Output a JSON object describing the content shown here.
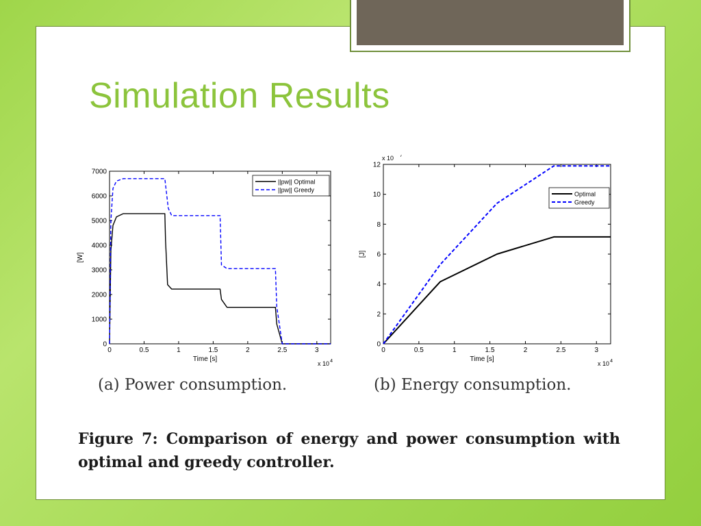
{
  "slide": {
    "title": "Simulation Results",
    "figure_caption": "Figure 7: Comparison of energy and power consumption with optimal and greedy controller.",
    "subcaption_a": "(a) Power consumption.",
    "subcaption_b": "(b) Energy consumption."
  },
  "chart_data": [
    {
      "type": "line",
      "title": "",
      "xlabel": "Time [s]",
      "ylabel": "[W]",
      "x_multiplier": "x 10",
      "x_multiplier_exp": "4",
      "xlim": [
        0,
        3.2
      ],
      "ylim": [
        0,
        7000
      ],
      "xticks": [
        "0",
        "0.5",
        "1",
        "1.5",
        "2",
        "2.5",
        "3"
      ],
      "yticks": [
        "0",
        "1000",
        "2000",
        "3000",
        "4000",
        "5000",
        "6000",
        "7000"
      ],
      "legend_position": "top-right",
      "series": [
        {
          "name": "||pw|| Optimal",
          "color": "#000000",
          "style": "solid",
          "x": [
            0,
            0.02,
            0.05,
            0.1,
            0.2,
            0.8,
            0.81,
            0.84,
            0.9,
            1.6,
            1.62,
            1.7,
            2.4,
            2.42,
            2.5,
            3.2
          ],
          "y": [
            0,
            3800,
            4800,
            5150,
            5280,
            5280,
            4200,
            2400,
            2220,
            2220,
            1800,
            1480,
            1480,
            800,
            0,
            0
          ]
        },
        {
          "name": "||pw|| Greedy",
          "color": "#0000ff",
          "style": "dashed",
          "x": [
            0,
            0.02,
            0.05,
            0.1,
            0.2,
            0.8,
            0.85,
            0.9,
            1.6,
            1.62,
            1.7,
            2.4,
            2.42,
            2.5,
            3.2
          ],
          "y": [
            0,
            5000,
            6300,
            6600,
            6700,
            6700,
            5500,
            5200,
            5200,
            3200,
            3050,
            3050,
            1500,
            0,
            0
          ]
        }
      ]
    },
    {
      "type": "line",
      "title": "",
      "xlabel": "Time [s]",
      "ylabel": "[J]",
      "x_multiplier": "x 10",
      "x_multiplier_exp": "4",
      "y_multiplier": "x 10",
      "y_multiplier_exp": "7",
      "xlim": [
        0,
        3.2
      ],
      "ylim": [
        0,
        12
      ],
      "xticks": [
        "0",
        "0.5",
        "1",
        "1.5",
        "2",
        "2.5",
        "3"
      ],
      "yticks": [
        "0",
        "2",
        "4",
        "6",
        "8",
        "10",
        "12"
      ],
      "legend_position": "top-right",
      "series": [
        {
          "name": "Optimal",
          "color": "#000000",
          "style": "solid",
          "x": [
            0,
            0.8,
            1.6,
            2.4,
            3.2
          ],
          "y": [
            0,
            4.15,
            6.0,
            7.15,
            7.15
          ]
        },
        {
          "name": "Greedy",
          "color": "#0000ff",
          "style": "dashed",
          "x": [
            0,
            0.8,
            1.6,
            2.4,
            3.2
          ],
          "y": [
            0,
            5.3,
            9.4,
            11.9,
            11.9
          ]
        }
      ]
    }
  ]
}
